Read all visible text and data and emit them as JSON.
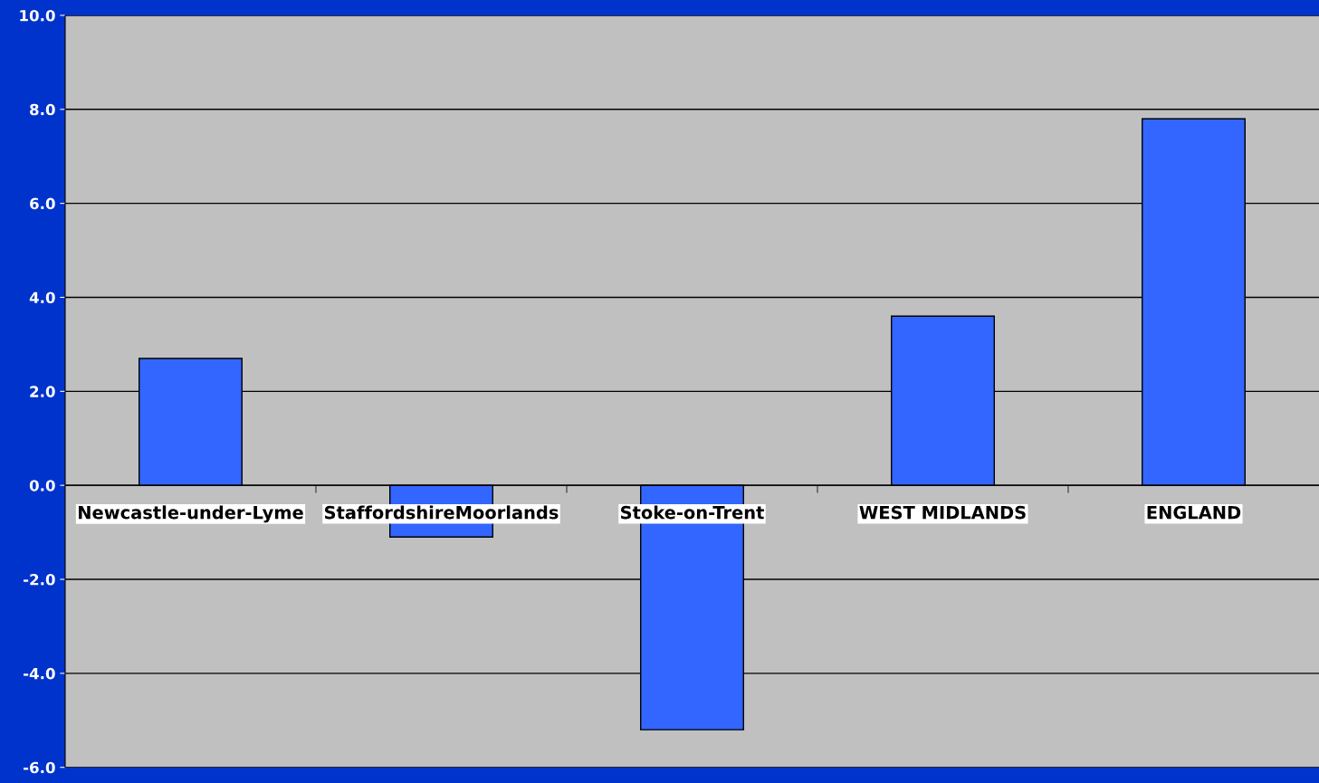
{
  "chart_data": {
    "type": "bar",
    "categories": [
      "Newcastle-under-Lyme",
      "StaffordshireMoorlands",
      "Stoke-on-Trent",
      "WEST MIDLANDS",
      "ENGLAND"
    ],
    "values": [
      2.7,
      -1.1,
      -5.2,
      3.6,
      7.8
    ],
    "color": "#3366ff",
    "ylim": [
      -6,
      10
    ],
    "yticks": [
      {
        "value": -6,
        "label": "-6.0"
      },
      {
        "value": -4,
        "label": "-4.0"
      },
      {
        "value": -2,
        "label": "-2.0"
      },
      {
        "value": 0,
        "label": "0.0"
      },
      {
        "value": 2,
        "label": "2.0"
      },
      {
        "value": 4,
        "label": "4.0"
      },
      {
        "value": 6,
        "label": "6.0"
      },
      {
        "value": 8,
        "label": "8.0"
      },
      {
        "value": 10,
        "label": "10.0"
      }
    ],
    "grid": "y",
    "legend": false
  }
}
